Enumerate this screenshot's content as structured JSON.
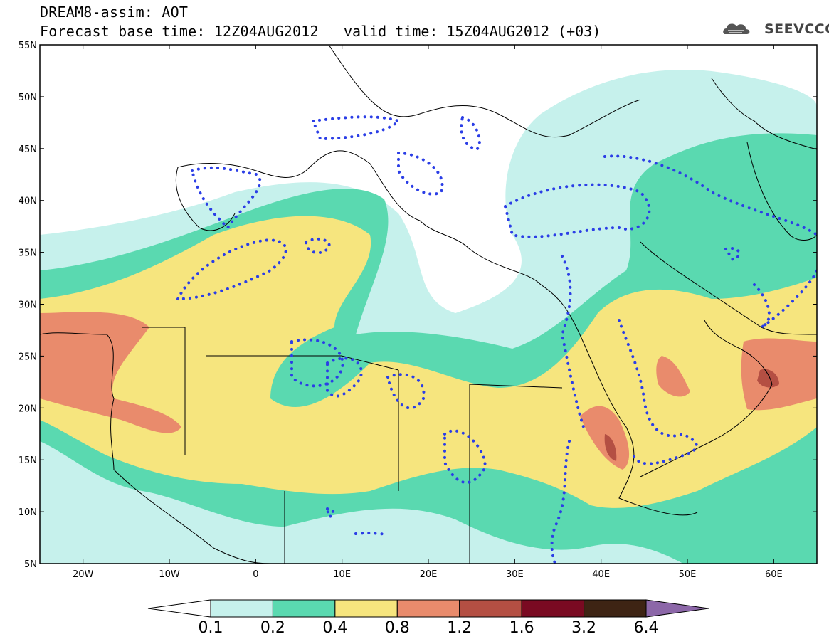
{
  "header": {
    "title": "DREAM8-assim: AOT",
    "base_time": "Forecast base time: 12Z04AUG2012",
    "valid_time": "valid time: 15Z04AUG2012 (+03)",
    "logo_text": "SEEVCCC"
  },
  "map": {
    "projection": "lat-lon",
    "lon_range": [
      -25,
      65
    ],
    "lat_range": [
      5,
      55
    ],
    "lat_labels": [
      "55N",
      "50N",
      "45N",
      "40N",
      "35N",
      "30N",
      "25N",
      "20N",
      "15N",
      "10N",
      "5N"
    ],
    "lon_labels": [
      "20W",
      "10W",
      "0",
      "10E",
      "20E",
      "30E",
      "40E",
      "50E",
      "60E"
    ],
    "observation_contour_color": "#2b3ee6",
    "coastline_color": "#000000"
  },
  "colorbar": {
    "levels": [
      "0.1",
      "0.2",
      "0.4",
      "0.8",
      "1.2",
      "1.6",
      "3.2",
      "6.4"
    ],
    "colors": [
      "#c6f1ec",
      "#5ad9b0",
      "#f6e57e",
      "#e98b6c",
      "#b44f43",
      "#7a0a22",
      "#3e2414",
      "#8c67a8"
    ],
    "below_color": "#ffffff"
  }
}
